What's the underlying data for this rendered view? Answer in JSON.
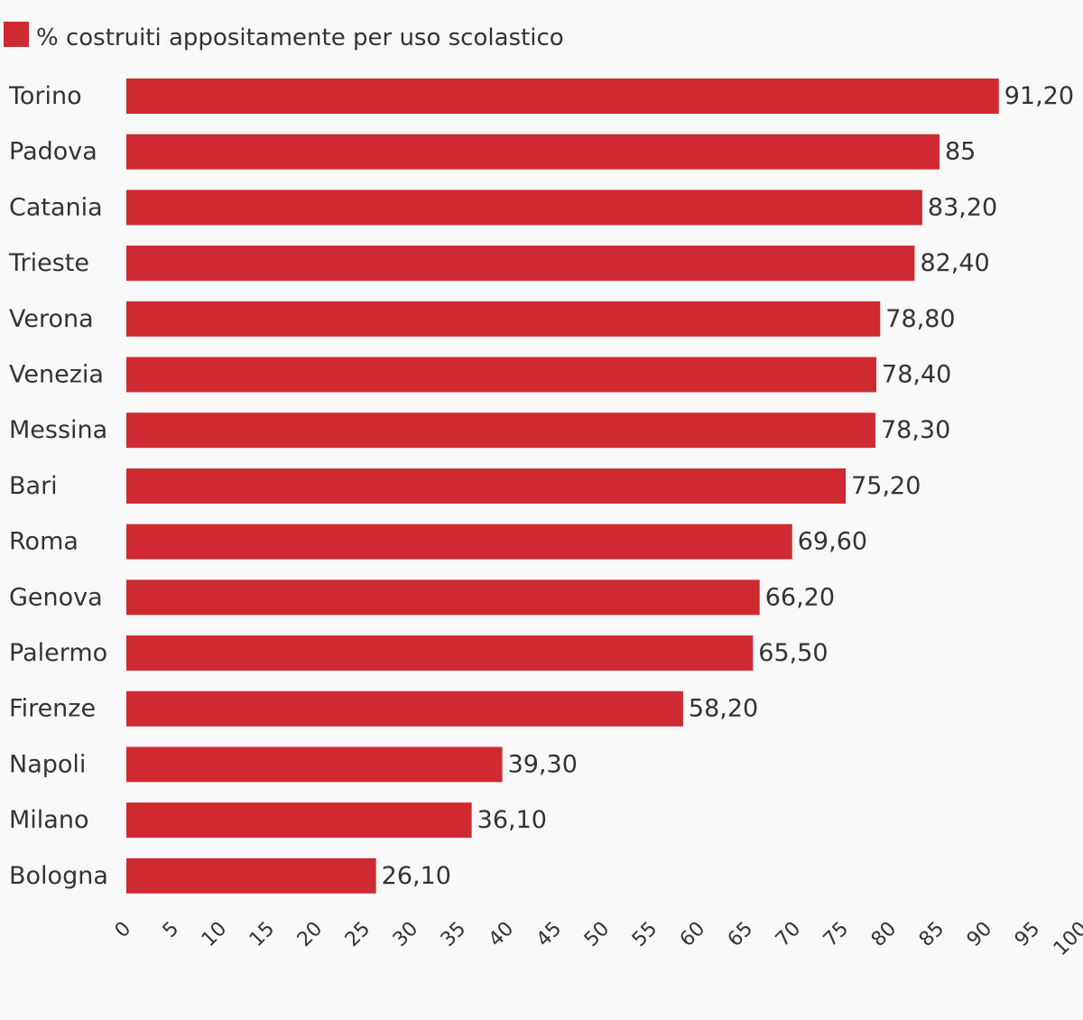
{
  "chart_data": {
    "type": "bar",
    "orientation": "horizontal",
    "categories": [
      "Torino",
      "Padova",
      "Catania",
      "Trieste",
      "Verona",
      "Venezia",
      "Messina",
      "Bari",
      "Roma",
      "Genova",
      "Palermo",
      "Firenze",
      "Napoli",
      "Milano",
      "Bologna"
    ],
    "series": [
      {
        "name": "% costruiti appositamente per uso scolastico",
        "color": "#cf2a31",
        "values": [
          91.2,
          85,
          83.2,
          82.4,
          78.8,
          78.4,
          78.3,
          75.2,
          69.6,
          66.2,
          65.5,
          58.2,
          39.3,
          36.1,
          26.1
        ],
        "labels": [
          "91,20",
          "85",
          "83,20",
          "82,40",
          "78,80",
          "78,40",
          "78,30",
          "75,20",
          "69,60",
          "66,20",
          "65,50",
          "58,20",
          "39,30",
          "36,10",
          "26,10"
        ]
      }
    ],
    "xlim": [
      0,
      100
    ],
    "xticks": [
      "0",
      "5",
      "10",
      "15",
      "20",
      "25",
      "30",
      "35",
      "40",
      "45",
      "50",
      "55",
      "60",
      "65",
      "70",
      "75",
      "80",
      "85",
      "90",
      "95",
      "100"
    ],
    "legend_position": "top-left",
    "grid": false
  }
}
